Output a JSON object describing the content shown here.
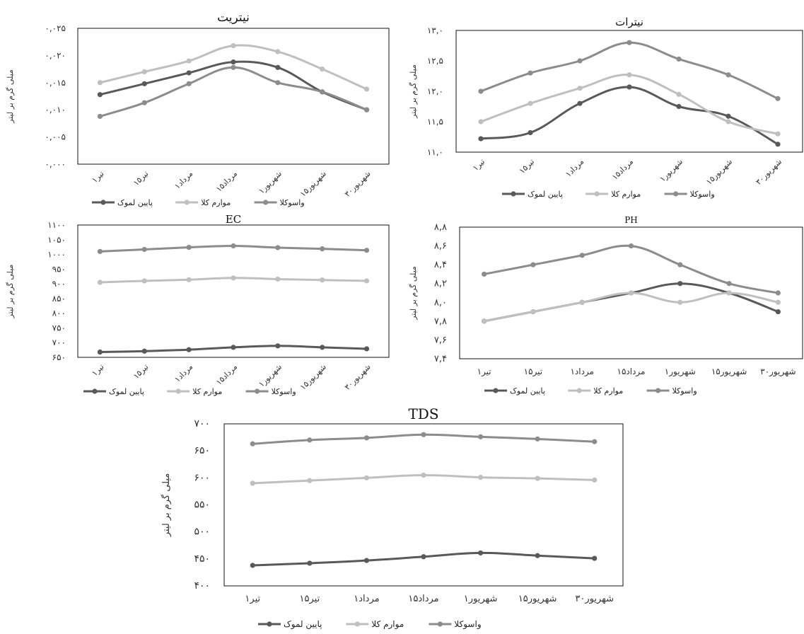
{
  "colors": {
    "s1": "#595959",
    "s2": "#bfbfbf",
    "s3": "#8c8c8c"
  },
  "legend_labels": [
    "پایین لموک",
    "موارم کلا",
    "واسوکلا"
  ],
  "chart_data": [
    {
      "id": "nitrite",
      "type": "line",
      "title": "نیتریت",
      "ylabel": "میلی گرم بر لیتر",
      "categories": [
        "۱تیر",
        "۱۵تیر",
        "۱مرداد",
        "۱۵مرداد",
        "۱شهریور",
        "۱۵شهریور",
        "۳۰شهریور"
      ],
      "yticks": [
        "۰,۰۰۰",
        "۰,۰۰۵",
        "۰,۰۱۰",
        "۰,۰۱۵",
        "۰,۰۲۰",
        "۰,۰۲۵"
      ],
      "ylim": [
        0,
        0.025
      ],
      "grid": false,
      "legend": "bottom",
      "series": [
        {
          "name": "پایین لموک",
          "values": [
            0.0128,
            0.0148,
            0.0168,
            0.0188,
            0.0178,
            0.0133,
            0.01
          ]
        },
        {
          "name": "موارم کلا",
          "values": [
            0.015,
            0.017,
            0.019,
            0.0218,
            0.0207,
            0.0175,
            0.0138
          ]
        },
        {
          "name": "واسوکلا",
          "values": [
            0.0088,
            0.0113,
            0.0148,
            0.0178,
            0.015,
            0.0133,
            0.01
          ]
        }
      ]
    },
    {
      "id": "nitrate",
      "type": "line",
      "title": "نیترات",
      "ylabel": "میلی گرم بر لیتر",
      "categories": [
        "۱تیر",
        "۱۵تیر",
        "۱مرداد",
        "۱۵مرداد",
        "۱شهریور",
        "۱۵شهریور",
        "۳۰شهریور"
      ],
      "yticks": [
        "۱۱,۰",
        "۱۱,۵",
        "۱۲,۰",
        "۱۲,۵",
        "۱۳,۰"
      ],
      "ylim": [
        11,
        13
      ],
      "grid": false,
      "legend": "bottom",
      "series": [
        {
          "name": "پایین لموک",
          "values": [
            11.22,
            11.32,
            11.8,
            12.07,
            11.75,
            11.59,
            11.13
          ]
        },
        {
          "name": "موارم کلا",
          "values": [
            11.5,
            11.8,
            12.05,
            12.27,
            11.95,
            11.5,
            11.3
          ]
        },
        {
          "name": "واسوکلا",
          "values": [
            12.0,
            12.3,
            12.5,
            12.8,
            12.53,
            12.27,
            11.88
          ]
        }
      ]
    },
    {
      "id": "ec",
      "type": "line",
      "title": "EC",
      "ylabel": "میلی گرم بر لیتر",
      "categories": [
        "۱تیر",
        "۱۵تیر",
        "۱مرداد",
        "۱۵مرداد",
        "۱شهریور",
        "۱۵شهریور",
        "۳۰شهریور"
      ],
      "yticks": [
        "۶۵۰",
        "۷۰۰",
        "۷۵۰",
        "۸۰۰",
        "۸۵۰",
        "۹۰۰",
        "۹۵۰",
        "۱۰۰۰",
        "۱۰۵۰",
        "۱۱۰۰"
      ],
      "ylim": [
        650,
        1100
      ],
      "grid": false,
      "legend": "bottom",
      "series": [
        {
          "name": "پایین لموک",
          "values": [
            668,
            671,
            676,
            684,
            689,
            684,
            679
          ]
        },
        {
          "name": "موارم کلا",
          "values": [
            905,
            910,
            914,
            920,
            916,
            913,
            910
          ]
        },
        {
          "name": "واسوکلا",
          "values": [
            1010,
            1017,
            1024,
            1029,
            1023,
            1019,
            1014
          ]
        }
      ]
    },
    {
      "id": "ph",
      "type": "line",
      "title": "PH",
      "ylabel": "میلی گرم بر لیتر",
      "categories": [
        "۱تیر",
        "۱۵تیر",
        "۱مرداد",
        "۱۵مرداد",
        "۱شهریور",
        "۱۵شهریور",
        "۳۰شهریور"
      ],
      "yticks": [
        "۷,۴",
        "۷,۶",
        "۷,۸",
        "۸,۰",
        "۸,۲",
        "۸,۴",
        "۸,۶",
        "۸,۸"
      ],
      "ylim": [
        7.4,
        8.8
      ],
      "grid": false,
      "legend": "bottom",
      "series": [
        {
          "name": "پایین لموک",
          "values": [
            7.8,
            7.9,
            8.0,
            8.1,
            8.2,
            8.1,
            7.9
          ]
        },
        {
          "name": "موارم کلا",
          "values": [
            7.8,
            7.9,
            8.0,
            8.1,
            8.0,
            8.1,
            8.0
          ]
        },
        {
          "name": "واسوکلا",
          "values": [
            8.3,
            8.4,
            8.5,
            8.6,
            8.4,
            8.2,
            8.1
          ]
        }
      ]
    },
    {
      "id": "tds",
      "type": "line",
      "title": "TDS",
      "ylabel": "میلی گرم بر لیتر",
      "categories": [
        "۱تیر",
        "۱۵تیر",
        "۱مرداد",
        "۱۵مرداد",
        "۱شهریور",
        "۱۵شهریور",
        "۳۰شهریور"
      ],
      "yticks": [
        "۴۰۰",
        "۴۵۰",
        "۵۰۰",
        "۵۵۰",
        "۶۰۰",
        "۶۵۰",
        "۷۰۰"
      ],
      "ylim": [
        400,
        700
      ],
      "grid": false,
      "legend": "bottom",
      "series": [
        {
          "name": "پایین لموک",
          "values": [
            438,
            442,
            447,
            454,
            461,
            456,
            451
          ]
        },
        {
          "name": "موارم کلا",
          "values": [
            590,
            595,
            600,
            605,
            601,
            599,
            596
          ]
        },
        {
          "name": "واسوکلا",
          "values": [
            663,
            670,
            674,
            680,
            676,
            672,
            667
          ]
        }
      ]
    }
  ]
}
